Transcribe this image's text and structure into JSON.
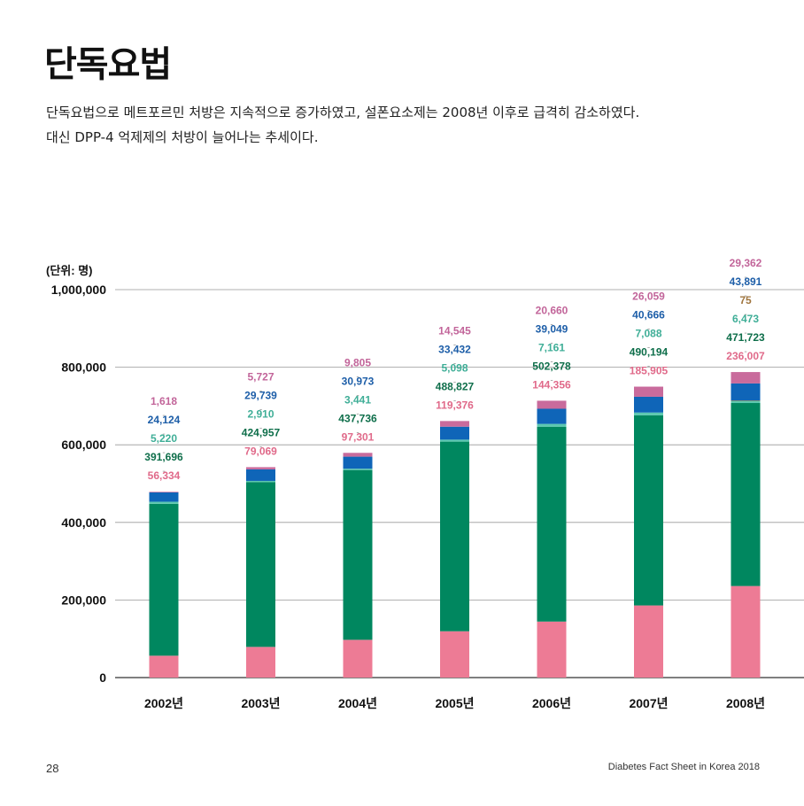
{
  "page": {
    "title": "단독요법",
    "subtitle_line1": "단독요법으로 메트포르민 처방은 지속적으로 증가하였고, 설폰요소제는 2008년 이후로 급격히 감소하였다.",
    "subtitle_line2": "대신 DPP-4 억제제의 처방이 늘어나는 추세이다.",
    "page_number": "28",
    "footer_title": "Diabetes Fact Sheet in Korea 2018"
  },
  "chart_data": {
    "type": "bar",
    "stacked": true,
    "unit_label": "(단위: 명)",
    "categories": [
      "2002년",
      "2003년",
      "2004년",
      "2005년",
      "2006년",
      "2007년",
      "2008년"
    ],
    "ylim": [
      0,
      1000000
    ],
    "yticks": [
      0,
      200000,
      400000,
      600000,
      800000,
      1000000
    ],
    "ytick_labels": [
      "0",
      "200,000",
      "400,000",
      "600,000",
      "800,000",
      "1,000,000"
    ],
    "grid": true,
    "series": [
      {
        "color": "#ed7b95",
        "label_color": "#e06a8a",
        "values": [
          56334,
          79069,
          97301,
          119376,
          144356,
          185905,
          236007
        ],
        "labels": [
          "56,334",
          "79,069",
          "97,301",
          "119,376",
          "144,356",
          "185,905",
          "236,007"
        ]
      },
      {
        "color": "#00875f",
        "label_color": "#0e6e4a",
        "values": [
          391696,
          424957,
          437736,
          488827,
          502378,
          490194,
          471723
        ],
        "labels": [
          "391,696",
          "424,957",
          "437,736",
          "488,827",
          "502,378",
          "490,194",
          "471,723"
        ]
      },
      {
        "color": "#5bc8b0",
        "label_color": "#3fae97",
        "values": [
          5220,
          2910,
          3441,
          5098,
          7161,
          7088,
          6473
        ],
        "labels": [
          "5,220",
          "2,910",
          "3,441",
          "5,098",
          "7,161",
          "7,088",
          "6,473"
        ]
      },
      {
        "color": "#a0763f",
        "label_color": "#a0763f",
        "values": [
          null,
          null,
          null,
          null,
          null,
          null,
          75
        ],
        "labels": [
          "",
          "",
          "",
          "",
          "",
          "",
          "75"
        ]
      },
      {
        "color": "#0f65b8",
        "label_color": "#1d5ea8",
        "values": [
          24124,
          29739,
          30973,
          33432,
          39049,
          40666,
          43891
        ],
        "labels": [
          "24,124",
          "29,739",
          "30,973",
          "33,432",
          "39,049",
          "40,666",
          "43,891"
        ]
      },
      {
        "color": "#c96b9c",
        "label_color": "#c2659a",
        "values": [
          1618,
          5727,
          9805,
          14545,
          20660,
          26059,
          29362
        ],
        "labels": [
          "1,618",
          "5,727",
          "9,805",
          "14,545",
          "20,660",
          "26,059",
          "29,362"
        ]
      }
    ]
  }
}
